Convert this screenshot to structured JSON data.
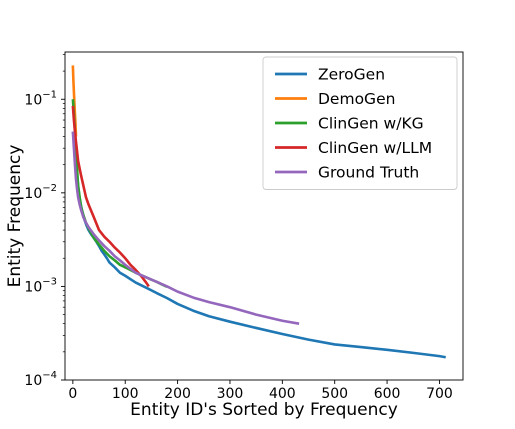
{
  "chart_data": {
    "type": "line",
    "xlabel": "Entity ID's Sorted by Frequency",
    "ylabel": "Entity Frequency",
    "xlim": [
      -15,
      745
    ],
    "ylim": [
      0.0001,
      0.32
    ],
    "yscale": "log",
    "grid": false,
    "legend_position": "top-right",
    "x_ticks": [
      {
        "value": 0,
        "label": "0"
      },
      {
        "value": 100,
        "label": "100"
      },
      {
        "value": 200,
        "label": "200"
      },
      {
        "value": 300,
        "label": "300"
      },
      {
        "value": 400,
        "label": "400"
      },
      {
        "value": 500,
        "label": "500"
      },
      {
        "value": 600,
        "label": "600"
      },
      {
        "value": 700,
        "label": "700"
      }
    ],
    "y_ticks": [
      {
        "value": 0.0001,
        "base": "10",
        "exp": "−4"
      },
      {
        "value": 0.001,
        "base": "10",
        "exp": "−3"
      },
      {
        "value": 0.01,
        "base": "10",
        "exp": "−2"
      },
      {
        "value": 0.1,
        "base": "10",
        "exp": "−1"
      }
    ],
    "series": [
      {
        "name": "ZeroGen",
        "color": "#1f77b4",
        "x": [
          0,
          2,
          4,
          6,
          8,
          10,
          12,
          15,
          18,
          22,
          26,
          30,
          35,
          40,
          45,
          50,
          55,
          60,
          65,
          70,
          80,
          90,
          100,
          120,
          140,
          160,
          180,
          200,
          230,
          260,
          300,
          350,
          400,
          450,
          500,
          550,
          600,
          650,
          700,
          712
        ],
        "y": [
          0.045,
          0.04,
          0.03,
          0.022,
          0.016,
          0.012,
          0.0095,
          0.0075,
          0.0063,
          0.0052,
          0.0045,
          0.004,
          0.0036,
          0.0033,
          0.003,
          0.0027,
          0.0024,
          0.0022,
          0.002,
          0.0018,
          0.0016,
          0.0014,
          0.0013,
          0.0011,
          0.00097,
          0.00085,
          0.00075,
          0.00065,
          0.00055,
          0.00048,
          0.00042,
          0.00036,
          0.00031,
          0.00027,
          0.00024,
          0.000225,
          0.00021,
          0.000195,
          0.00018,
          0.000175
        ]
      },
      {
        "name": "DemoGen",
        "color": "#ff7f0e",
        "x": [
          0,
          1,
          2,
          3,
          4,
          5,
          6
        ],
        "y": [
          0.23,
          0.16,
          0.12,
          0.09,
          0.07,
          0.055,
          0.04
        ]
      },
      {
        "name": "ClinGen w/KG",
        "color": "#2ca02c",
        "x": [
          0,
          2,
          4,
          6,
          8,
          10,
          13,
          16,
          20,
          25,
          30,
          40,
          50,
          60,
          70,
          80,
          90,
          100,
          110,
          120,
          130,
          140,
          150,
          160,
          170,
          180
        ],
        "y": [
          0.1,
          0.07,
          0.045,
          0.028,
          0.018,
          0.012,
          0.009,
          0.007,
          0.0058,
          0.0048,
          0.0042,
          0.0033,
          0.0028,
          0.0024,
          0.0021,
          0.0019,
          0.0017,
          0.0016,
          0.0015,
          0.0014,
          0.00132,
          0.00125,
          0.00118,
          0.00112,
          0.00105,
          0.00099
        ]
      },
      {
        "name": "ClinGen w/LLM",
        "color": "#d62728",
        "x": [
          0,
          2,
          4,
          6,
          8,
          10,
          15,
          20,
          25,
          30,
          40,
          50,
          60,
          70,
          80,
          90,
          100,
          110,
          120,
          130,
          140,
          145
        ],
        "y": [
          0.085,
          0.06,
          0.045,
          0.035,
          0.028,
          0.022,
          0.016,
          0.012,
          0.009,
          0.0075,
          0.0055,
          0.004,
          0.0034,
          0.003,
          0.0026,
          0.0023,
          0.002,
          0.0017,
          0.0015,
          0.0013,
          0.0011,
          0.001
        ]
      },
      {
        "name": "Ground Truth",
        "color": "#9467bd",
        "x": [
          0,
          2,
          4,
          6,
          8,
          10,
          13,
          16,
          20,
          25,
          30,
          40,
          50,
          60,
          70,
          80,
          90,
          100,
          120,
          140,
          160,
          180,
          200,
          230,
          260,
          300,
          350,
          400,
          432
        ],
        "y": [
          0.045,
          0.03,
          0.02,
          0.014,
          0.011,
          0.009,
          0.0075,
          0.0065,
          0.0055,
          0.0048,
          0.0043,
          0.0036,
          0.0031,
          0.0027,
          0.0024,
          0.0021,
          0.0019,
          0.0017,
          0.0014,
          0.00125,
          0.00112,
          0.001,
          0.00088,
          0.00076,
          0.00068,
          0.0006,
          0.0005,
          0.00043,
          0.0004
        ]
      }
    ]
  }
}
